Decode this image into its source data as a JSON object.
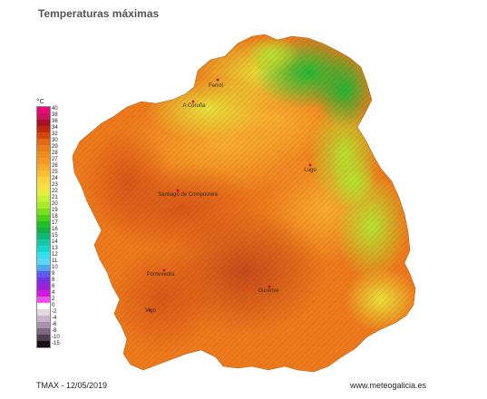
{
  "title": "Temperaturas máximas",
  "unit": "°C",
  "legend": [
    {
      "label": "40",
      "color": "#e8087a"
    },
    {
      "label": "38",
      "color": "#c9145a"
    },
    {
      "label": "36",
      "color": "#a8102a"
    },
    {
      "label": "34",
      "color": "#c0280c"
    },
    {
      "label": "32",
      "color": "#d8460e"
    },
    {
      "label": "30",
      "color": "#e06a12"
    },
    {
      "label": "29",
      "color": "#ea7e18"
    },
    {
      "label": "28",
      "color": "#f08c1e"
    },
    {
      "label": "27",
      "color": "#f59a24"
    },
    {
      "label": "26",
      "color": "#f8aa2c"
    },
    {
      "label": "25",
      "color": "#fbbe34"
    },
    {
      "label": "24",
      "color": "#fcd23c"
    },
    {
      "label": "23",
      "color": "#f4e040"
    },
    {
      "label": "22",
      "color": "#e6ec3c"
    },
    {
      "label": "21",
      "color": "#c8f032"
    },
    {
      "label": "20",
      "color": "#a4ea28"
    },
    {
      "label": "19",
      "color": "#78de1e"
    },
    {
      "label": "18",
      "color": "#4ad01a"
    },
    {
      "label": "17",
      "color": "#22c020"
    },
    {
      "label": "16",
      "color": "#14b044"
    },
    {
      "label": "15",
      "color": "#10b878"
    },
    {
      "label": "14",
      "color": "#14c8a8"
    },
    {
      "label": "13",
      "color": "#18d6d0"
    },
    {
      "label": "12",
      "color": "#30e0ee"
    },
    {
      "label": "11",
      "color": "#5ad8f8"
    },
    {
      "label": "10",
      "color": "#4aa8f4"
    },
    {
      "label": "9",
      "color": "#5a5cf0"
    },
    {
      "label": "8",
      "color": "#7a30e0"
    },
    {
      "label": "6",
      "color": "#a020d8"
    },
    {
      "label": "4",
      "color": "#d01ce0"
    },
    {
      "label": "2",
      "color": "#f050f0"
    },
    {
      "label": "0",
      "color": "#ffffff"
    },
    {
      "label": "-2",
      "color": "#e4d8e4"
    },
    {
      "label": "-4",
      "color": "#c6b6c8"
    },
    {
      "label": "-6",
      "color": "#a690aa"
    },
    {
      "label": "-8",
      "color": "#7c6680"
    },
    {
      "label": "-10",
      "color": "#503e54"
    },
    {
      "label": "-15",
      "color": "#181018"
    }
  ],
  "cities": [
    {
      "name": "Ferrol"
    },
    {
      "name": "A Coruña"
    },
    {
      "name": "Lugo"
    },
    {
      "name": "Santiago de Compostela"
    },
    {
      "name": "Pontevedra"
    },
    {
      "name": "Ourense"
    },
    {
      "name": "Vigo"
    }
  ],
  "footer": {
    "date": "TMAX - 12/05/2019",
    "site": "www.meteogalicia.es"
  },
  "map_colors": {
    "warm_hot": "#e5581b",
    "hot_dark": "#c8501a",
    "orange": "#f08a1e",
    "light_orange": "#f6a62a",
    "yellow": "#f2dc3a",
    "yellow_green": "#bfe632",
    "green": "#3fcc28",
    "water": "#ffffff"
  }
}
